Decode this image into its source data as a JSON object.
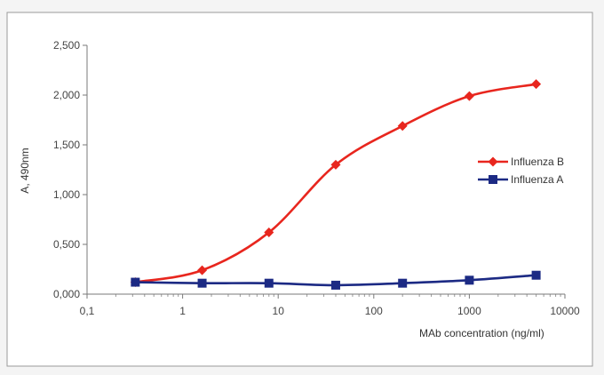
{
  "chart_data": {
    "type": "line",
    "x_scale": "log",
    "xlim": [
      0.1,
      10000
    ],
    "ylim": [
      0,
      2.5
    ],
    "xlabel": "MAb concentration (ng/ml)",
    "ylabel": "A, 490nm",
    "x_tick_values": [
      0.1,
      1,
      10,
      100,
      1000,
      10000
    ],
    "x_tick_labels": [
      "0,1",
      "1",
      "10",
      "100",
      "1000",
      "10000"
    ],
    "y_tick_values": [
      0,
      0.5,
      1.0,
      1.5,
      2.0,
      2.5
    ],
    "y_tick_labels": [
      "0,000",
      "0,500",
      "1,000",
      "1,500",
      "2,000",
      "2,500"
    ],
    "grid": false,
    "legend_position": "right",
    "series": [
      {
        "name": "Influenza B",
        "color": "#e8261e",
        "marker": "diamond",
        "x": [
          0.32,
          1.6,
          8,
          40,
          200,
          1000,
          5000
        ],
        "y": [
          0.12,
          0.24,
          0.62,
          1.3,
          1.69,
          1.99,
          2.11
        ]
      },
      {
        "name": "Influenza A",
        "color": "#1c2a84",
        "marker": "square",
        "x": [
          0.32,
          1.6,
          8,
          40,
          200,
          1000,
          5000
        ],
        "y": [
          0.12,
          0.11,
          0.11,
          0.09,
          0.11,
          0.14,
          0.19
        ]
      }
    ]
  }
}
